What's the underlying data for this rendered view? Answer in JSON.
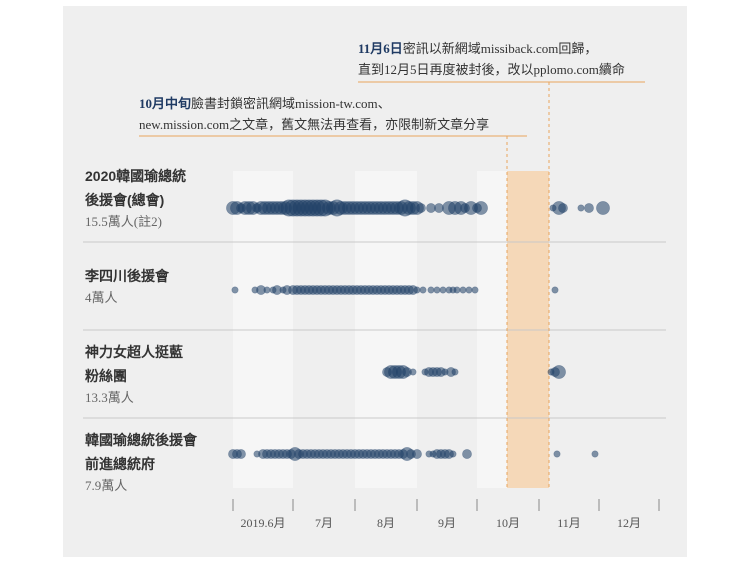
{
  "annotations": {
    "nov6": {
      "highlight": "11月6日",
      "line1": "密訊以新網域missiback.com回歸，",
      "line2": "直到12月5日再度被封後，改以pplomo.com續命"
    },
    "oct_mid": {
      "highlight": "10月中旬",
      "line1": "臉書封鎖密訊網域mission-tw.com、",
      "line2": "new.mission.com之文章，舊文無法再查看，亦限制新文章分享"
    }
  },
  "chart_data": {
    "type": "scatter",
    "x_axis": {
      "ticks": [
        "2019.6月",
        "7月",
        "8月",
        "9月",
        "10月",
        "11月",
        "12月"
      ],
      "range": [
        "2019-06-01",
        "2019-12-31"
      ]
    },
    "highlight_period": {
      "start": "2019-10-16",
      "end": "2019-11-06"
    },
    "colors": {
      "dot": "#1f3f66",
      "band": "#f5d8b8",
      "leader": "#e8a55e",
      "stripe": "#f6f6f6",
      "divider": "#c9c9c9"
    },
    "series": [
      {
        "name_lines": [
          "2020韓國瑜總統",
          "後援會(總會)"
        ],
        "count": "15.5萬人(註2)",
        "points": [
          {
            "x": "2019-06-01",
            "size": 3
          },
          {
            "x": "2019-06-03",
            "size": 3
          },
          {
            "x": "2019-06-05",
            "size": 2
          },
          {
            "x": "2019-06-07",
            "size": 3
          },
          {
            "x": "2019-06-09",
            "size": 3
          },
          {
            "x": "2019-06-11",
            "size": 3
          },
          {
            "x": "2019-06-13",
            "size": 2
          },
          {
            "x": "2019-06-15",
            "size": 3
          },
          {
            "x": "2019-06-17",
            "size": 3
          },
          {
            "x": "2019-06-19",
            "size": 3
          },
          {
            "x": "2019-06-21",
            "size": 3
          },
          {
            "x": "2019-06-23",
            "size": 3
          },
          {
            "x": "2019-06-25",
            "size": 3
          },
          {
            "x": "2019-06-27",
            "size": 3
          },
          {
            "x": "2019-06-29",
            "size": 4
          },
          {
            "x": "2019-07-01",
            "size": 4
          },
          {
            "x": "2019-07-03",
            "size": 4
          },
          {
            "x": "2019-07-05",
            "size": 4
          },
          {
            "x": "2019-07-07",
            "size": 4
          },
          {
            "x": "2019-07-09",
            "size": 4
          },
          {
            "x": "2019-07-11",
            "size": 4
          },
          {
            "x": "2019-07-13",
            "size": 4
          },
          {
            "x": "2019-07-15",
            "size": 4
          },
          {
            "x": "2019-07-17",
            "size": 4
          },
          {
            "x": "2019-07-19",
            "size": 3
          },
          {
            "x": "2019-07-21",
            "size": 3
          },
          {
            "x": "2019-07-23",
            "size": 4
          },
          {
            "x": "2019-07-25",
            "size": 3
          },
          {
            "x": "2019-07-27",
            "size": 3
          },
          {
            "x": "2019-07-29",
            "size": 3
          },
          {
            "x": "2019-07-31",
            "size": 3
          },
          {
            "x": "2019-08-02",
            "size": 3
          },
          {
            "x": "2019-08-04",
            "size": 3
          },
          {
            "x": "2019-08-06",
            "size": 3
          },
          {
            "x": "2019-08-08",
            "size": 3
          },
          {
            "x": "2019-08-10",
            "size": 3
          },
          {
            "x": "2019-08-12",
            "size": 3
          },
          {
            "x": "2019-08-14",
            "size": 3
          },
          {
            "x": "2019-08-16",
            "size": 3
          },
          {
            "x": "2019-08-18",
            "size": 3
          },
          {
            "x": "2019-08-20",
            "size": 3
          },
          {
            "x": "2019-08-22",
            "size": 3
          },
          {
            "x": "2019-08-24",
            "size": 3
          },
          {
            "x": "2019-08-26",
            "size": 4
          },
          {
            "x": "2019-08-28",
            "size": 3
          },
          {
            "x": "2019-08-30",
            "size": 3
          },
          {
            "x": "2019-09-01",
            "size": 3
          },
          {
            "x": "2019-09-03",
            "size": 2
          },
          {
            "x": "2019-09-08",
            "size": 2
          },
          {
            "x": "2019-09-12",
            "size": 2
          },
          {
            "x": "2019-09-17",
            "size": 3
          },
          {
            "x": "2019-09-20",
            "size": 3
          },
          {
            "x": "2019-09-23",
            "size": 3
          },
          {
            "x": "2019-09-25",
            "size": 2
          },
          {
            "x": "2019-09-28",
            "size": 3
          },
          {
            "x": "2019-10-01",
            "size": 2
          },
          {
            "x": "2019-10-03",
            "size": 3
          },
          {
            "x": "2019-11-08",
            "size": 1
          },
          {
            "x": "2019-11-11",
            "size": 3
          },
          {
            "x": "2019-11-13",
            "size": 2
          },
          {
            "x": "2019-11-22",
            "size": 1
          },
          {
            "x": "2019-11-26",
            "size": 2
          },
          {
            "x": "2019-12-03",
            "size": 3
          }
        ]
      },
      {
        "name_lines": [
          "李四川後援會"
        ],
        "count": "4萬人",
        "points": [
          {
            "x": "2019-06-02",
            "size": 1
          },
          {
            "x": "2019-06-12",
            "size": 1
          },
          {
            "x": "2019-06-15",
            "size": 2
          },
          {
            "x": "2019-06-18",
            "size": 1
          },
          {
            "x": "2019-06-21",
            "size": 1
          },
          {
            "x": "2019-06-23",
            "size": 2
          },
          {
            "x": "2019-06-26",
            "size": 1
          },
          {
            "x": "2019-06-28",
            "size": 2
          },
          {
            "x": "2019-07-01",
            "size": 2
          },
          {
            "x": "2019-07-03",
            "size": 2
          },
          {
            "x": "2019-07-05",
            "size": 2
          },
          {
            "x": "2019-07-07",
            "size": 2
          },
          {
            "x": "2019-07-09",
            "size": 2
          },
          {
            "x": "2019-07-11",
            "size": 2
          },
          {
            "x": "2019-07-13",
            "size": 2
          },
          {
            "x": "2019-07-15",
            "size": 2
          },
          {
            "x": "2019-07-17",
            "size": 2
          },
          {
            "x": "2019-07-19",
            "size": 2
          },
          {
            "x": "2019-07-21",
            "size": 2
          },
          {
            "x": "2019-07-23",
            "size": 2
          },
          {
            "x": "2019-07-25",
            "size": 2
          },
          {
            "x": "2019-07-27",
            "size": 2
          },
          {
            "x": "2019-07-29",
            "size": 2
          },
          {
            "x": "2019-07-31",
            "size": 2
          },
          {
            "x": "2019-08-02",
            "size": 2
          },
          {
            "x": "2019-08-04",
            "size": 2
          },
          {
            "x": "2019-08-06",
            "size": 2
          },
          {
            "x": "2019-08-08",
            "size": 2
          },
          {
            "x": "2019-08-10",
            "size": 2
          },
          {
            "x": "2019-08-12",
            "size": 2
          },
          {
            "x": "2019-08-14",
            "size": 2
          },
          {
            "x": "2019-08-16",
            "size": 2
          },
          {
            "x": "2019-08-18",
            "size": 2
          },
          {
            "x": "2019-08-20",
            "size": 2
          },
          {
            "x": "2019-08-22",
            "size": 2
          },
          {
            "x": "2019-08-24",
            "size": 2
          },
          {
            "x": "2019-08-26",
            "size": 2
          },
          {
            "x": "2019-08-28",
            "size": 2
          },
          {
            "x": "2019-08-30",
            "size": 2
          },
          {
            "x": "2019-09-01",
            "size": 1
          },
          {
            "x": "2019-09-04",
            "size": 1
          },
          {
            "x": "2019-09-08",
            "size": 1
          },
          {
            "x": "2019-09-11",
            "size": 1
          },
          {
            "x": "2019-09-14",
            "size": 1
          },
          {
            "x": "2019-09-17",
            "size": 1
          },
          {
            "x": "2019-09-19",
            "size": 1
          },
          {
            "x": "2019-09-21",
            "size": 1
          },
          {
            "x": "2019-09-24",
            "size": 1
          },
          {
            "x": "2019-09-27",
            "size": 1
          },
          {
            "x": "2019-09-30",
            "size": 1
          },
          {
            "x": "2019-11-09",
            "size": 1
          }
        ]
      },
      {
        "name_lines": [
          "神力女超人挺藍",
          "粉絲團"
        ],
        "count": "13.3萬人",
        "points": [
          {
            "x": "2019-08-17",
            "size": 2
          },
          {
            "x": "2019-08-19",
            "size": 3
          },
          {
            "x": "2019-08-21",
            "size": 3
          },
          {
            "x": "2019-08-23",
            "size": 3
          },
          {
            "x": "2019-08-25",
            "size": 3
          },
          {
            "x": "2019-08-27",
            "size": 2
          },
          {
            "x": "2019-08-30",
            "size": 1
          },
          {
            "x": "2019-09-05",
            "size": 1
          },
          {
            "x": "2019-09-07",
            "size": 2
          },
          {
            "x": "2019-09-09",
            "size": 2
          },
          {
            "x": "2019-09-11",
            "size": 2
          },
          {
            "x": "2019-09-13",
            "size": 2
          },
          {
            "x": "2019-09-15",
            "size": 1
          },
          {
            "x": "2019-09-18",
            "size": 2
          },
          {
            "x": "2019-09-20",
            "size": 1
          },
          {
            "x": "2019-11-07",
            "size": 1
          },
          {
            "x": "2019-11-09",
            "size": 2
          },
          {
            "x": "2019-11-11",
            "size": 3
          }
        ]
      },
      {
        "name_lines": [
          "韓國瑜總統後援會",
          "前進總統府"
        ],
        "count": "7.9萬人",
        "points": [
          {
            "x": "2019-06-01",
            "size": 2
          },
          {
            "x": "2019-06-03",
            "size": 2
          },
          {
            "x": "2019-06-05",
            "size": 2
          },
          {
            "x": "2019-06-13",
            "size": 1
          },
          {
            "x": "2019-06-16",
            "size": 2
          },
          {
            "x": "2019-06-18",
            "size": 2
          },
          {
            "x": "2019-06-20",
            "size": 2
          },
          {
            "x": "2019-06-22",
            "size": 2
          },
          {
            "x": "2019-06-24",
            "size": 2
          },
          {
            "x": "2019-06-26",
            "size": 2
          },
          {
            "x": "2019-06-28",
            "size": 2
          },
          {
            "x": "2019-06-30",
            "size": 2
          },
          {
            "x": "2019-07-02",
            "size": 3
          },
          {
            "x": "2019-07-04",
            "size": 2
          },
          {
            "x": "2019-07-06",
            "size": 2
          },
          {
            "x": "2019-07-08",
            "size": 2
          },
          {
            "x": "2019-07-10",
            "size": 2
          },
          {
            "x": "2019-07-12",
            "size": 2
          },
          {
            "x": "2019-07-14",
            "size": 2
          },
          {
            "x": "2019-07-16",
            "size": 2
          },
          {
            "x": "2019-07-18",
            "size": 2
          },
          {
            "x": "2019-07-20",
            "size": 2
          },
          {
            "x": "2019-07-22",
            "size": 2
          },
          {
            "x": "2019-07-24",
            "size": 2
          },
          {
            "x": "2019-07-26",
            "size": 2
          },
          {
            "x": "2019-07-28",
            "size": 2
          },
          {
            "x": "2019-07-30",
            "size": 2
          },
          {
            "x": "2019-08-01",
            "size": 2
          },
          {
            "x": "2019-08-03",
            "size": 2
          },
          {
            "x": "2019-08-05",
            "size": 2
          },
          {
            "x": "2019-08-07",
            "size": 2
          },
          {
            "x": "2019-08-09",
            "size": 2
          },
          {
            "x": "2019-08-11",
            "size": 2
          },
          {
            "x": "2019-08-13",
            "size": 2
          },
          {
            "x": "2019-08-15",
            "size": 2
          },
          {
            "x": "2019-08-17",
            "size": 2
          },
          {
            "x": "2019-08-19",
            "size": 2
          },
          {
            "x": "2019-08-21",
            "size": 2
          },
          {
            "x": "2019-08-23",
            "size": 2
          },
          {
            "x": "2019-08-25",
            "size": 2
          },
          {
            "x": "2019-08-27",
            "size": 3
          },
          {
            "x": "2019-08-29",
            "size": 2
          },
          {
            "x": "2019-09-01",
            "size": 2
          },
          {
            "x": "2019-09-07",
            "size": 1
          },
          {
            "x": "2019-09-09",
            "size": 1
          },
          {
            "x": "2019-09-11",
            "size": 2
          },
          {
            "x": "2019-09-13",
            "size": 2
          },
          {
            "x": "2019-09-15",
            "size": 2
          },
          {
            "x": "2019-09-17",
            "size": 2
          },
          {
            "x": "2019-09-19",
            "size": 1
          },
          {
            "x": "2019-09-26",
            "size": 2
          },
          {
            "x": "2019-11-10",
            "size": 1
          },
          {
            "x": "2019-11-29",
            "size": 1
          }
        ]
      }
    ]
  }
}
